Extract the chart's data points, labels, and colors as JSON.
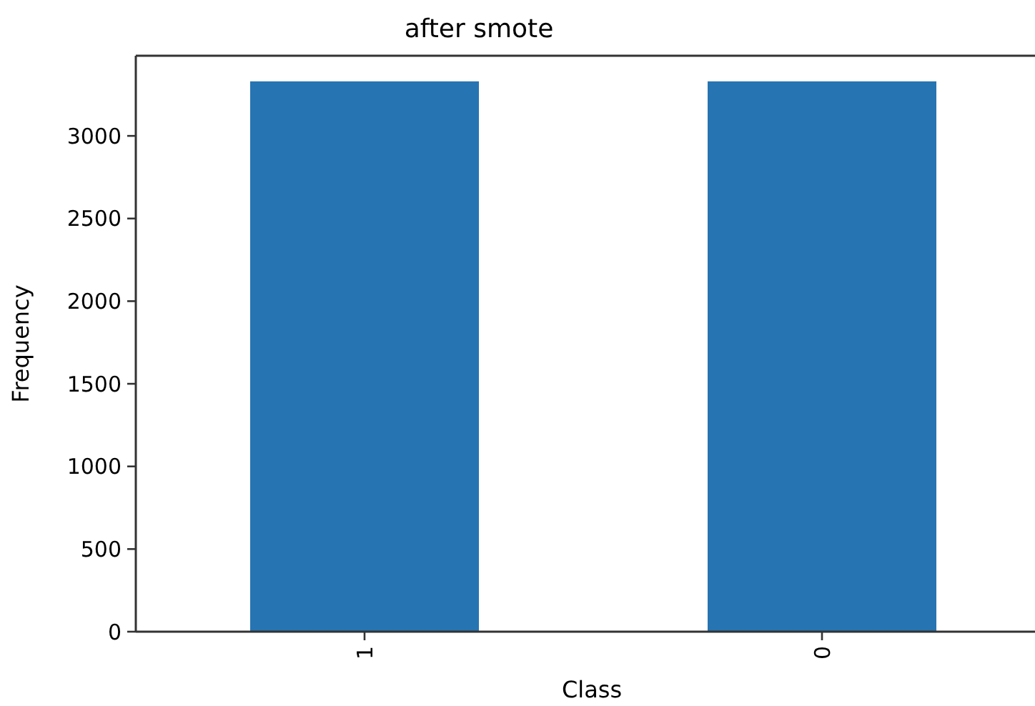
{
  "chart_data": {
    "type": "bar",
    "title": "after smote",
    "xlabel": "Class",
    "ylabel": "Frequency",
    "categories": [
      "1",
      "0"
    ],
    "values": [
      3330,
      3330
    ],
    "color": "#2674b2",
    "ylim": [
      0,
      3485
    ],
    "yticks": [
      0,
      500,
      1000,
      1500,
      2000,
      2500,
      3000
    ],
    "grid": false
  }
}
